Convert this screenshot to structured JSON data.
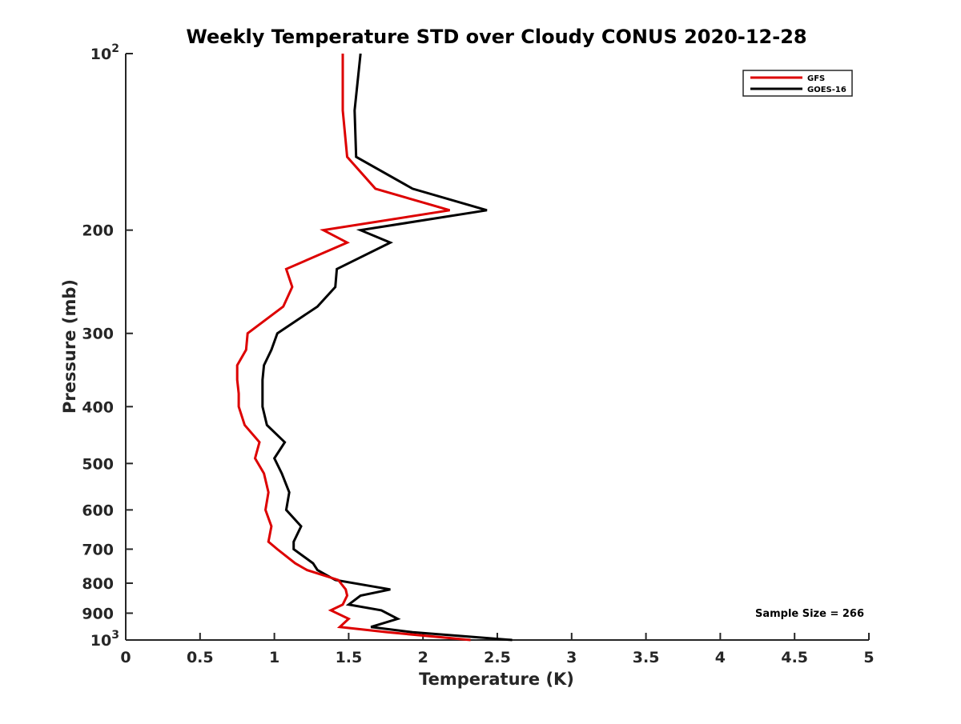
{
  "chart_data": {
    "type": "line",
    "title": "Weekly Temperature STD over Cloudy CONUS 2020-12-28",
    "xlabel": "Temperature (K)",
    "ylabel": "Pressure (mb)",
    "xlim": [
      0,
      5
    ],
    "ylim": [
      100,
      1000
    ],
    "y_scale": "log",
    "y_reversed": true,
    "grid": false,
    "legend_position": "top-right",
    "x_ticks": [
      0,
      0.5,
      1,
      1.5,
      2,
      2.5,
      3,
      3.5,
      4,
      4.5,
      5
    ],
    "x_tick_labels": [
      "0",
      "0.5",
      "1",
      "1.5",
      "2",
      "2.5",
      "3",
      "3.5",
      "4",
      "4.5",
      "5"
    ],
    "y_ticks": [
      200,
      300,
      400,
      500,
      600,
      700,
      800,
      900
    ],
    "y_tick_labels": [
      "200",
      "300",
      "400",
      "500",
      "600",
      "700",
      "800",
      "900"
    ],
    "y_decade_labels": [
      {
        "value": 100,
        "base": "10",
        "exp": "2"
      },
      {
        "value": 1000,
        "base": "10",
        "exp": "3"
      }
    ],
    "annotation": "Sample Size = 266",
    "series": [
      {
        "name": "GFS",
        "color": "#dd0000",
        "points": [
          [
            1.46,
            100
          ],
          [
            1.46,
            125
          ],
          [
            1.49,
            150
          ],
          [
            1.68,
            170
          ],
          [
            2.18,
            185
          ],
          [
            1.33,
            200
          ],
          [
            1.49,
            210
          ],
          [
            1.08,
            233
          ],
          [
            1.12,
            250
          ],
          [
            1.06,
            270
          ],
          [
            0.82,
            300
          ],
          [
            0.81,
            320
          ],
          [
            0.75,
            340
          ],
          [
            0.75,
            360
          ],
          [
            0.76,
            380
          ],
          [
            0.76,
            400
          ],
          [
            0.8,
            430
          ],
          [
            0.9,
            460
          ],
          [
            0.87,
            490
          ],
          [
            0.93,
            520
          ],
          [
            0.96,
            560
          ],
          [
            0.94,
            600
          ],
          [
            0.98,
            640
          ],
          [
            0.96,
            680
          ],
          [
            1.02,
            700
          ],
          [
            1.14,
            740
          ],
          [
            1.22,
            760
          ],
          [
            1.43,
            790
          ],
          [
            1.48,
            820
          ],
          [
            1.49,
            840
          ],
          [
            1.46,
            870
          ],
          [
            1.38,
            890
          ],
          [
            1.5,
            920
          ],
          [
            1.44,
            950
          ],
          [
            1.76,
            970
          ],
          [
            2.32,
            1000
          ]
        ]
      },
      {
        "name": "GOES-16",
        "color": "#000000",
        "points": [
          [
            1.58,
            100
          ],
          [
            1.54,
            125
          ],
          [
            1.55,
            150
          ],
          [
            1.93,
            170
          ],
          [
            2.43,
            185
          ],
          [
            1.58,
            200
          ],
          [
            1.78,
            210
          ],
          [
            1.42,
            233
          ],
          [
            1.41,
            250
          ],
          [
            1.29,
            270
          ],
          [
            1.02,
            300
          ],
          [
            0.98,
            320
          ],
          [
            0.93,
            340
          ],
          [
            0.92,
            360
          ],
          [
            0.92,
            380
          ],
          [
            0.92,
            400
          ],
          [
            0.95,
            430
          ],
          [
            1.07,
            460
          ],
          [
            1.0,
            490
          ],
          [
            1.05,
            520
          ],
          [
            1.1,
            560
          ],
          [
            1.08,
            600
          ],
          [
            1.18,
            640
          ],
          [
            1.13,
            680
          ],
          [
            1.13,
            700
          ],
          [
            1.26,
            740
          ],
          [
            1.29,
            760
          ],
          [
            1.41,
            790
          ],
          [
            1.78,
            820
          ],
          [
            1.58,
            840
          ],
          [
            1.5,
            870
          ],
          [
            1.72,
            890
          ],
          [
            1.83,
            920
          ],
          [
            1.65,
            950
          ],
          [
            1.93,
            970
          ],
          [
            2.6,
            1000
          ]
        ]
      }
    ]
  }
}
